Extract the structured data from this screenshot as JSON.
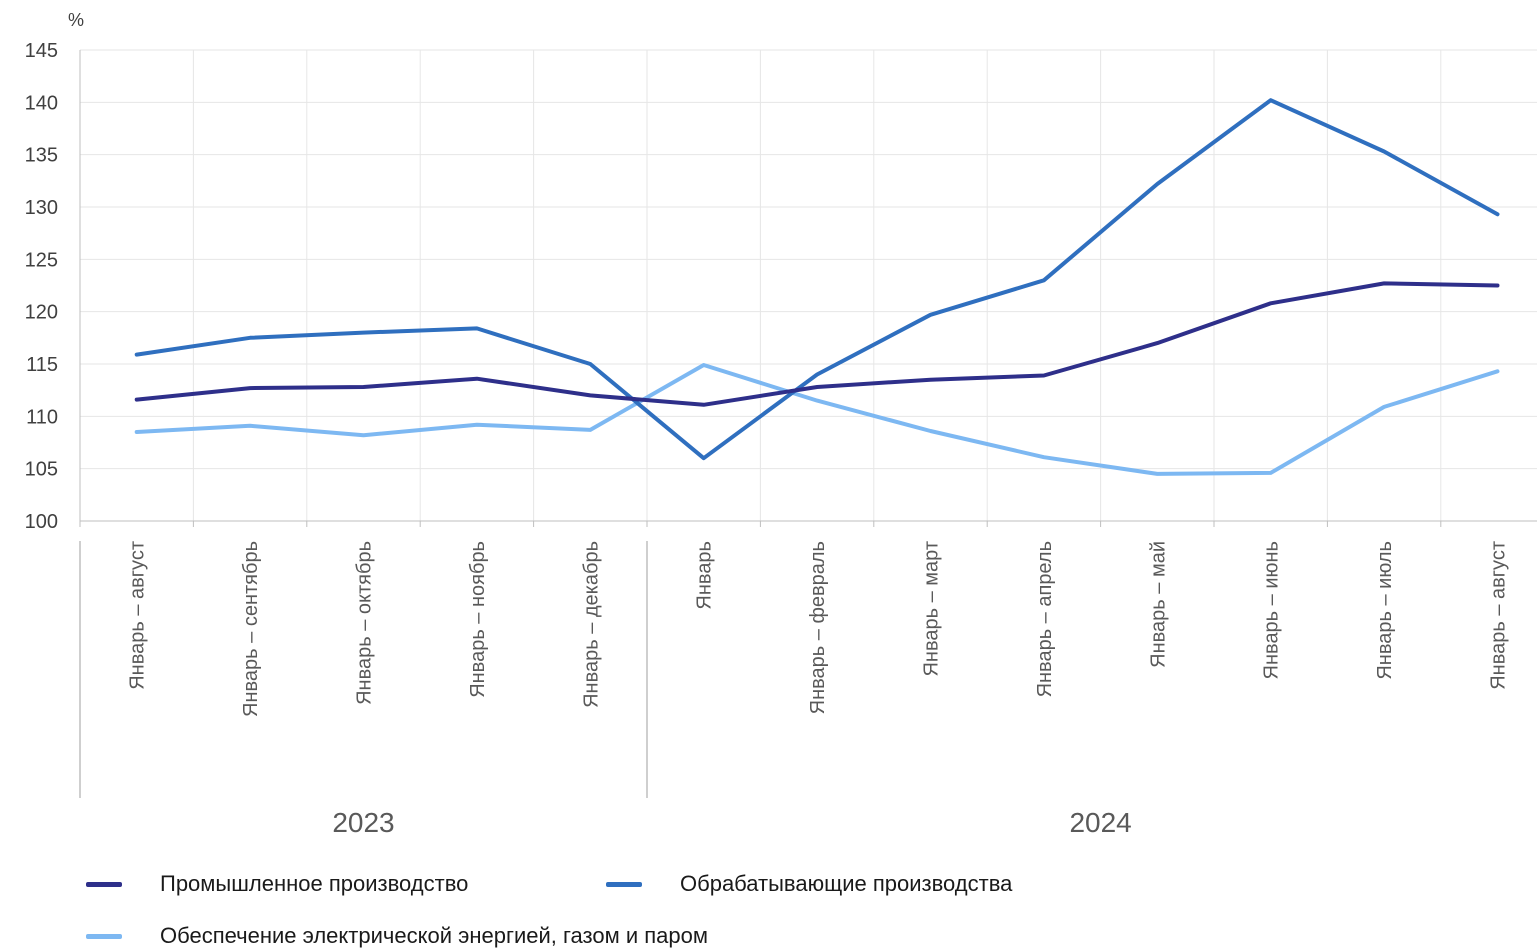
{
  "chart_data": {
    "type": "line",
    "ylabel": "%",
    "ylim": [
      100,
      145
    ],
    "yticks": [
      "100",
      "105",
      "110",
      "115",
      "120",
      "125",
      "130",
      "135",
      "140",
      "145"
    ],
    "grid": true,
    "categories": [
      "Январь – август",
      "Январь – сентябрь",
      "Январь – октябрь",
      "Январь – ноябрь",
      "Январь – декабрь",
      "Январь",
      "Январь – февраль",
      "Январь – март",
      "Январь – апрель",
      "Январь – май",
      "Январь – июнь",
      "Январь – июль",
      "Январь – август"
    ],
    "groups": [
      {
        "label": "2023",
        "count": 5
      },
      {
        "label": "2024",
        "count": 8
      }
    ],
    "series": [
      {
        "name": "Промышленное производство",
        "color": "#2e2f8a",
        "values": [
          111.6,
          112.7,
          112.8,
          113.6,
          112.0,
          111.1,
          112.8,
          113.5,
          113.9,
          117.0,
          120.8,
          122.7,
          122.5
        ]
      },
      {
        "name": "Обрабатывающие производства",
        "color": "#2f6fbf",
        "values": [
          115.9,
          117.5,
          118.0,
          118.4,
          115.0,
          106.0,
          114.0,
          119.7,
          123.0,
          132.2,
          140.2,
          135.3,
          129.3
        ]
      },
      {
        "name": "Обеспечение электрической энергией, газом и паром",
        "color": "#7db8f2",
        "values": [
          108.5,
          109.1,
          108.2,
          109.2,
          108.7,
          114.9,
          111.5,
          108.6,
          106.1,
          104.5,
          104.6,
          110.9,
          114.3
        ]
      }
    ],
    "legend_position": "bottom"
  }
}
